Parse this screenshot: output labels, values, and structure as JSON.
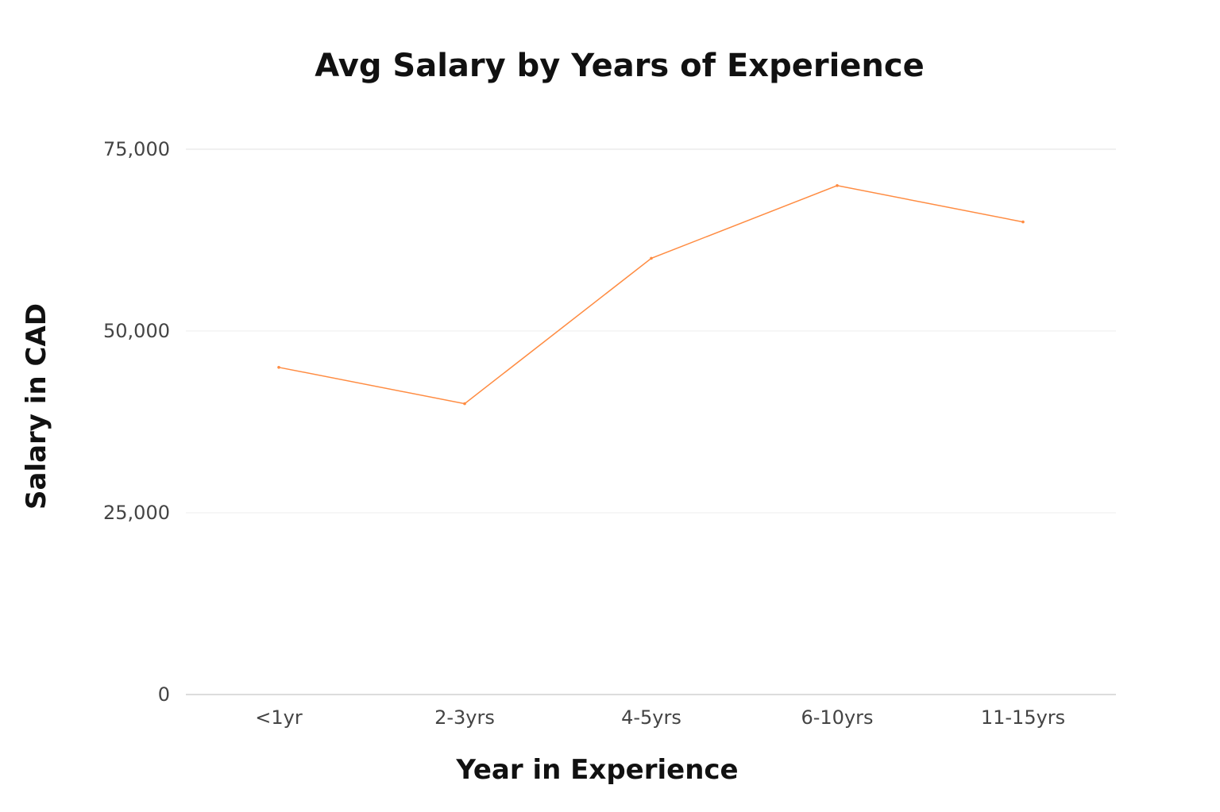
{
  "chart_data": {
    "type": "line",
    "title": "Avg Salary by Years of Experience",
    "xlabel": "Year in Experience",
    "ylabel": "Salary in CAD",
    "categories": [
      "<1yr",
      "2-3yrs",
      "4-5yrs",
      "6-10yrs",
      "11-15yrs"
    ],
    "series": [
      {
        "name": "Avg Salary",
        "values": [
          45000,
          40000,
          60000,
          70000,
          65000
        ],
        "color": "#ff8c42"
      }
    ],
    "ylim": [
      0,
      75000
    ],
    "yticks": [
      "0",
      "25,000",
      "50,000",
      "75,000"
    ],
    "grid": true,
    "legend": "none"
  }
}
